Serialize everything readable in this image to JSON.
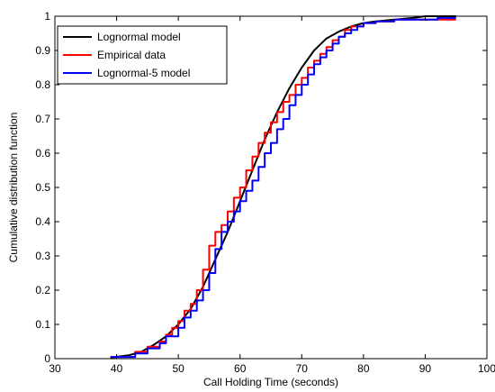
{
  "chart_data": {
    "type": "line",
    "title": "",
    "xlabel": "Call Holding Time (seconds)",
    "ylabel": "Cumulative distribution function",
    "xlim": [
      30,
      100
    ],
    "ylim": [
      0,
      1
    ],
    "xticks": [
      30,
      40,
      50,
      60,
      70,
      80,
      90,
      100
    ],
    "yticks": [
      0,
      0.1,
      0.2,
      0.3,
      0.4,
      0.5,
      0.6,
      0.7,
      0.8,
      0.9,
      1
    ],
    "grid": false,
    "legend_position": "top-left",
    "series": [
      {
        "name": "Lognormal model",
        "color": "#000000",
        "step": false,
        "x": [
          39,
          42,
          44,
          46,
          48,
          50,
          52,
          54,
          56,
          58,
          60,
          62,
          64,
          66,
          68,
          70,
          72,
          74,
          76,
          78,
          80,
          82,
          85,
          88,
          90,
          95
        ],
        "y": [
          0.003,
          0.01,
          0.02,
          0.04,
          0.065,
          0.1,
          0.145,
          0.21,
          0.29,
          0.37,
          0.46,
          0.55,
          0.64,
          0.72,
          0.79,
          0.85,
          0.9,
          0.935,
          0.955,
          0.97,
          0.98,
          0.985,
          0.99,
          0.995,
          1.0,
          1.0
        ]
      },
      {
        "name": "Empirical data",
        "color": "#ff0000",
        "step": true,
        "x": [
          39,
          43,
          45,
          47,
          48,
          49,
          50,
          51,
          52,
          53,
          54,
          55,
          56,
          57,
          58,
          59,
          60,
          61,
          62,
          63,
          64,
          65,
          66,
          67,
          68,
          69,
          70,
          71,
          72,
          73,
          74,
          75,
          76,
          77,
          78,
          80,
          82,
          85,
          88,
          95
        ],
        "y": [
          0.005,
          0.02,
          0.035,
          0.05,
          0.07,
          0.09,
          0.11,
          0.14,
          0.16,
          0.2,
          0.26,
          0.33,
          0.37,
          0.39,
          0.43,
          0.47,
          0.5,
          0.55,
          0.59,
          0.63,
          0.66,
          0.69,
          0.72,
          0.75,
          0.77,
          0.8,
          0.82,
          0.85,
          0.87,
          0.89,
          0.91,
          0.93,
          0.94,
          0.96,
          0.97,
          0.98,
          0.985,
          0.99,
          0.99,
          0.99
        ]
      },
      {
        "name": "Lognormal-5 model",
        "color": "#0000ff",
        "step": true,
        "x": [
          39,
          43,
          45,
          47,
          48,
          50,
          51,
          52,
          53,
          54,
          55,
          56,
          57,
          58,
          59,
          60,
          61,
          62,
          63,
          64,
          65,
          66,
          67,
          68,
          69,
          70,
          71,
          72,
          73,
          74,
          75,
          76,
          77,
          78,
          79,
          80,
          82,
          85,
          88,
          92,
          95
        ],
        "y": [
          0.005,
          0.015,
          0.03,
          0.045,
          0.065,
          0.09,
          0.12,
          0.14,
          0.17,
          0.2,
          0.25,
          0.32,
          0.37,
          0.4,
          0.43,
          0.46,
          0.49,
          0.52,
          0.56,
          0.6,
          0.63,
          0.67,
          0.7,
          0.74,
          0.77,
          0.8,
          0.83,
          0.86,
          0.88,
          0.9,
          0.92,
          0.94,
          0.95,
          0.96,
          0.97,
          0.98,
          0.985,
          0.99,
          0.99,
          0.995,
          0.995
        ]
      }
    ]
  }
}
